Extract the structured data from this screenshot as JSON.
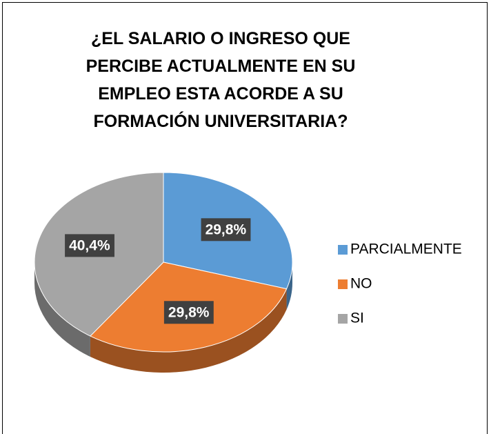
{
  "chart_data": {
    "type": "pie",
    "title": "¿EL SALARIO O INGRESO QUE PERCIBE ACTUALMENTE EN SU EMPLEO ESTA ACORDE A SU FORMACIÓN UNIVERSITARIA?",
    "categories": [
      "PARCIALMENTE",
      "NO",
      "SI"
    ],
    "values": [
      29.8,
      29.8,
      40.4
    ],
    "value_labels": [
      "29,8%",
      "29,8%",
      "40,4%"
    ],
    "colors": [
      "#5b9bd5",
      "#ed7d31",
      "#a5a5a5"
    ],
    "legend": "right"
  }
}
